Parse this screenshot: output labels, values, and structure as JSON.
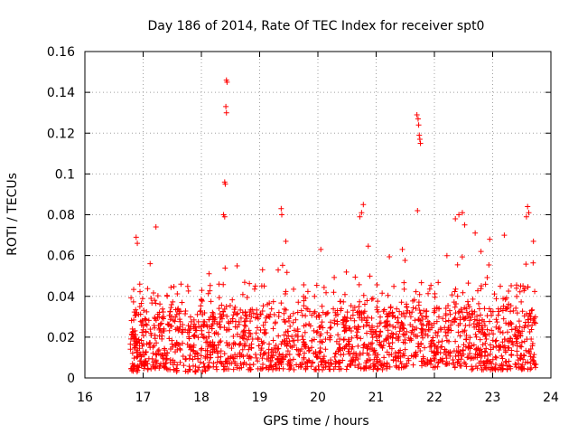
{
  "chart_data": {
    "type": "scatter",
    "title": "Day 186 of 2014, Rate Of TEC Index for receiver spt0",
    "xlabel": "GPS time / hours",
    "ylabel": "ROTI / TECUs",
    "xlim": [
      16,
      24
    ],
    "ylim": [
      0,
      0.16
    ],
    "xticks": [
      16,
      17,
      18,
      19,
      20,
      21,
      22,
      23,
      24
    ],
    "xtick_labels": [
      "16",
      "17",
      "18",
      "19",
      "20",
      "21",
      "22",
      "23",
      "24"
    ],
    "yticks": [
      0,
      0.02,
      0.04,
      0.06,
      0.08,
      0.1,
      0.12,
      0.14,
      0.16
    ],
    "ytick_labels": [
      "0",
      "0.02",
      "0.04",
      "0.06",
      "0.08",
      "0.1",
      "0.12",
      "0.14",
      "0.16"
    ],
    "grid": true,
    "marker": "+",
    "color": "#ff0000",
    "data_range_hours": [
      16.78,
      23.75
    ],
    "series": [
      {
        "name": "ROTI",
        "outliers": [
          [
            18.43,
            0.146
          ],
          [
            18.44,
            0.145
          ],
          [
            18.42,
            0.133
          ],
          [
            18.43,
            0.13
          ],
          [
            18.4,
            0.096
          ],
          [
            18.41,
            0.095
          ],
          [
            18.38,
            0.08
          ],
          [
            18.4,
            0.079
          ],
          [
            21.7,
            0.129
          ],
          [
            21.72,
            0.127
          ],
          [
            21.73,
            0.124
          ],
          [
            21.74,
            0.119
          ],
          [
            21.75,
            0.117
          ],
          [
            21.76,
            0.115
          ],
          [
            21.71,
            0.082
          ],
          [
            17.22,
            0.074
          ],
          [
            19.37,
            0.083
          ],
          [
            19.38,
            0.08
          ],
          [
            19.45,
            0.067
          ],
          [
            20.78,
            0.085
          ],
          [
            20.75,
            0.081
          ],
          [
            20.72,
            0.079
          ],
          [
            22.42,
            0.08
          ],
          [
            22.48,
            0.081
          ],
          [
            22.36,
            0.078
          ],
          [
            22.52,
            0.075
          ],
          [
            23.6,
            0.084
          ],
          [
            23.62,
            0.081
          ],
          [
            23.58,
            0.079
          ],
          [
            16.88,
            0.069
          ],
          [
            16.9,
            0.066
          ],
          [
            17.12,
            0.056
          ],
          [
            17.65,
            0.046
          ],
          [
            19.05,
            0.053
          ],
          [
            20.05,
            0.063
          ],
          [
            21.45,
            0.063
          ],
          [
            22.95,
            0.068
          ],
          [
            23.2,
            0.07
          ],
          [
            23.7,
            0.067
          ],
          [
            22.7,
            0.071
          ],
          [
            22.8,
            0.062
          ]
        ],
        "bands": [
          {
            "x": [
              16.78,
              16.95
            ],
            "y": [
              0.003,
              0.06
            ],
            "n": 70
          },
          {
            "x": [
              16.95,
              17.5
            ],
            "y": [
              0.004,
              0.055
            ],
            "n": 160
          },
          {
            "x": [
              17.5,
              18.1
            ],
            "y": [
              0.003,
              0.048
            ],
            "n": 150
          },
          {
            "x": [
              18.1,
              18.6
            ],
            "y": [
              0.004,
              0.058
            ],
            "n": 140
          },
          {
            "x": [
              18.6,
              19.3
            ],
            "y": [
              0.004,
              0.055
            ],
            "n": 170
          },
          {
            "x": [
              19.3,
              20.0
            ],
            "y": [
              0.004,
              0.06
            ],
            "n": 170
          },
          {
            "x": [
              20.0,
              20.6
            ],
            "y": [
              0.004,
              0.052
            ],
            "n": 150
          },
          {
            "x": [
              20.6,
              21.2
            ],
            "y": [
              0.004,
              0.07
            ],
            "n": 170
          },
          {
            "x": [
              21.2,
              21.9
            ],
            "y": [
              0.005,
              0.065
            ],
            "n": 180
          },
          {
            "x": [
              21.9,
              22.6
            ],
            "y": [
              0.005,
              0.07
            ],
            "n": 190
          },
          {
            "x": [
              22.6,
              23.2
            ],
            "y": [
              0.004,
              0.062
            ],
            "n": 170
          },
          {
            "x": [
              23.2,
              23.75
            ],
            "y": [
              0.004,
              0.066
            ],
            "n": 160
          }
        ]
      }
    ]
  }
}
